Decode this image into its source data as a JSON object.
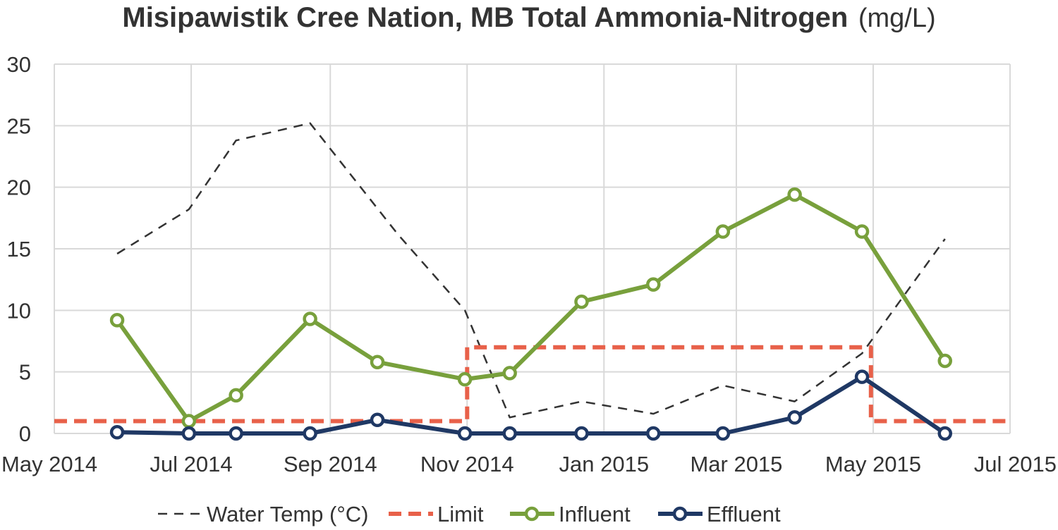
{
  "chart_data": {
    "type": "line",
    "title": "Misipawistik Cree Nation, MB Total Ammonia-Nitrogen",
    "title_unit": "(mg/L)",
    "xlabel": "",
    "ylabel": "",
    "ylim": [
      0,
      30
    ],
    "yticks": [
      "0",
      "5",
      "10",
      "15",
      "20",
      "25",
      "30"
    ],
    "xlim": [
      "2014-05-01",
      "2015-07-01"
    ],
    "xticks": [
      {
        "label": "May 2014",
        "date": "2014-05-01"
      },
      {
        "label": "Jul 2014",
        "date": "2014-07-01"
      },
      {
        "label": "Sep 2014",
        "date": "2014-09-01"
      },
      {
        "label": "Nov 2014",
        "date": "2014-11-01"
      },
      {
        "label": "Jan 2015",
        "date": "2015-01-01"
      },
      {
        "label": "Mar 2015",
        "date": "2015-03-01"
      },
      {
        "label": "May 2015",
        "date": "2015-05-01"
      },
      {
        "label": "Jul 2015",
        "date": "2015-07-01"
      }
    ],
    "grid": true,
    "legend_position": "bottom",
    "series": [
      {
        "name": "Water Temp (°C)",
        "style": "dashed-thin",
        "color": "#333333",
        "points": [
          {
            "x": "2014-05-29",
            "y": 14.6
          },
          {
            "x": "2014-06-30",
            "y": 18.2
          },
          {
            "x": "2014-07-21",
            "y": 23.8
          },
          {
            "x": "2014-08-23",
            "y": 25.2
          },
          {
            "x": "2014-10-01",
            "y": 16.2
          },
          {
            "x": "2014-10-31",
            "y": 10.0
          },
          {
            "x": "2014-11-20",
            "y": 1.3
          },
          {
            "x": "2014-12-22",
            "y": 2.6
          },
          {
            "x": "2015-01-23",
            "y": 1.6
          },
          {
            "x": "2015-02-23",
            "y": 3.9
          },
          {
            "x": "2015-03-27",
            "y": 2.6
          },
          {
            "x": "2015-04-26",
            "y": 6.5
          },
          {
            "x": "2015-06-02",
            "y": 15.8
          }
        ]
      },
      {
        "name": "Limit",
        "style": "dashed-thick",
        "color": "#e8614a",
        "points": [
          {
            "x": "2014-05-01",
            "y": 1.0
          },
          {
            "x": "2014-11-01",
            "y": 1.0
          },
          {
            "x": "2014-11-01",
            "y": 7.0
          },
          {
            "x": "2015-04-30",
            "y": 7.0
          },
          {
            "x": "2015-04-30",
            "y": 1.0
          },
          {
            "x": "2015-07-01",
            "y": 1.0
          }
        ]
      },
      {
        "name": "Influent",
        "style": "solid-markers",
        "color": "#78a03c",
        "points": [
          {
            "x": "2014-05-29",
            "y": 9.2
          },
          {
            "x": "2014-06-30",
            "y": 1.0
          },
          {
            "x": "2014-07-21",
            "y": 3.1
          },
          {
            "x": "2014-08-23",
            "y": 9.3
          },
          {
            "x": "2014-09-22",
            "y": 5.8
          },
          {
            "x": "2014-10-31",
            "y": 4.4
          },
          {
            "x": "2014-11-20",
            "y": 4.9
          },
          {
            "x": "2014-12-22",
            "y": 10.7
          },
          {
            "x": "2015-01-23",
            "y": 12.1
          },
          {
            "x": "2015-02-23",
            "y": 16.4
          },
          {
            "x": "2015-03-27",
            "y": 19.4
          },
          {
            "x": "2015-04-26",
            "y": 16.4
          },
          {
            "x": "2015-06-02",
            "y": 5.9
          }
        ]
      },
      {
        "name": "Effluent",
        "style": "solid-markers",
        "color": "#1f3864",
        "points": [
          {
            "x": "2014-05-29",
            "y": 0.1
          },
          {
            "x": "2014-06-30",
            "y": 0.0
          },
          {
            "x": "2014-07-21",
            "y": 0.0
          },
          {
            "x": "2014-08-23",
            "y": 0.0
          },
          {
            "x": "2014-09-22",
            "y": 1.1
          },
          {
            "x": "2014-10-31",
            "y": 0.0
          },
          {
            "x": "2014-11-20",
            "y": 0.0
          },
          {
            "x": "2014-12-22",
            "y": 0.0
          },
          {
            "x": "2015-01-23",
            "y": 0.0
          },
          {
            "x": "2015-02-23",
            "y": 0.0
          },
          {
            "x": "2015-03-27",
            "y": 1.3
          },
          {
            "x": "2015-04-26",
            "y": 4.6
          },
          {
            "x": "2015-06-02",
            "y": 0.0
          }
        ]
      }
    ]
  }
}
